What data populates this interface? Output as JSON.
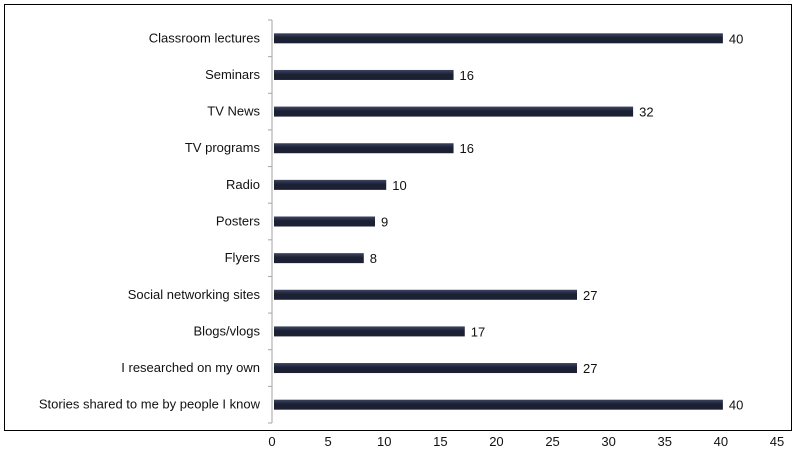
{
  "chart_data": {
    "type": "bar",
    "orientation": "horizontal",
    "title": "",
    "xlabel": "",
    "ylabel": "",
    "categories": [
      "Classroom lectures",
      "Seminars",
      "TV News",
      "TV programs",
      "Radio",
      "Posters",
      "Flyers",
      "Social networking sites",
      "Blogs/vlogs",
      "I researched on my own",
      "Stories shared to me by people I know"
    ],
    "values": [
      40,
      16,
      32,
      16,
      10,
      9,
      8,
      27,
      17,
      27,
      40
    ],
    "xlim": [
      0,
      45
    ],
    "xticks": [
      "0",
      "5",
      "10",
      "15",
      "20",
      "25",
      "30",
      "35",
      "40",
      "45"
    ],
    "grid": false,
    "legend": "none",
    "colors": {
      "bar": "#1b2033",
      "bar_highlight": "#3d4563",
      "axis": "#a6a6a6"
    }
  }
}
